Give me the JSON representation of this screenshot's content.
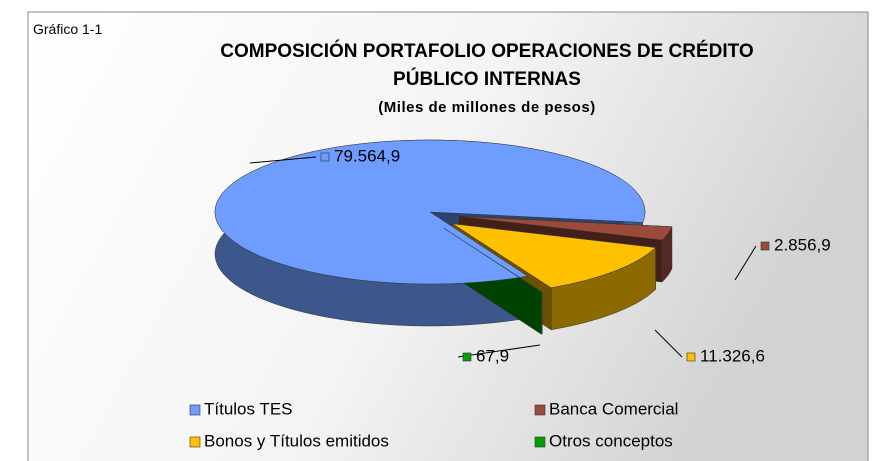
{
  "chart_data": {
    "type": "pie",
    "figure_label": "Gráfico 1-1",
    "title": "COMPOSICIÓN PORTAFOLIO OPERACIONES DE CRÉDITO PÚBLICO INTERNAS",
    "subtitle": "(Miles de millones de pesos)",
    "categories": [
      "Títulos TES",
      "Banca Comercial",
      "Bonos y Títulos emitidos",
      "Otros conceptos"
    ],
    "values": [
      79564.9,
      2856.9,
      11326.6,
      67.9
    ],
    "value_labels": [
      "79.564,9",
      "2.856,9",
      "11.326,6",
      "67,9"
    ],
    "colors": [
      "#6f9cff",
      "#9c4a3a",
      "#ffc000",
      "#00a000"
    ],
    "legend": "bottom"
  }
}
